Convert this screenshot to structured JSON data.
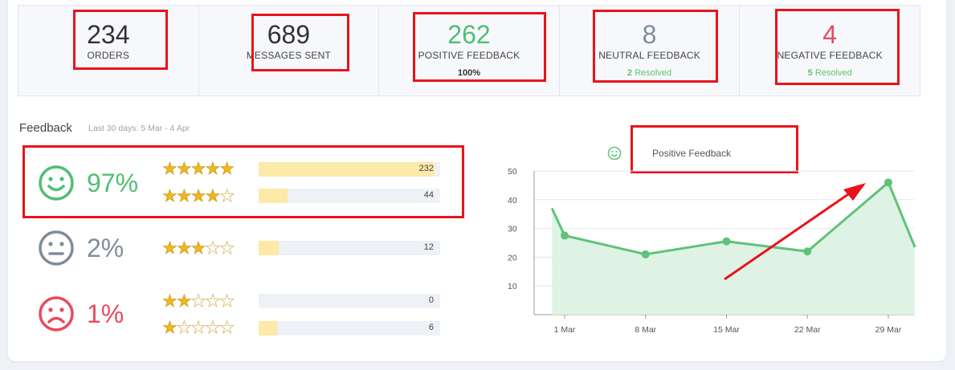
{
  "stats": [
    {
      "value": "234",
      "label": "ORDERS",
      "sub": ""
    },
    {
      "value": "689",
      "label": "MESSAGES SENT",
      "sub": ""
    },
    {
      "value": "262",
      "label": "POSITIVE FEEDBACK",
      "sub": "100%"
    },
    {
      "value": "8",
      "label": "NEUTRAL FEEDBACK",
      "sub_count": "2",
      "sub_label": "Resolved"
    },
    {
      "value": "4",
      "label": "NEGATIVE FEEDBACK",
      "sub_count": "5",
      "sub_label": "Resolved"
    }
  ],
  "colors": {
    "positive": "#4fbf72",
    "neutral": "#7f8c9a",
    "negative": "#e84a5f",
    "highlight": "#e8141b"
  },
  "feedback": {
    "title": "Feedback",
    "period": "Last 30 days: 5 Mar - 4 Apr",
    "groups": [
      {
        "icon": "happy-face-icon",
        "percent": "97%"
      },
      {
        "icon": "neutral-face-icon",
        "percent": "2%"
      },
      {
        "icon": "sad-face-icon",
        "percent": "1%"
      }
    ],
    "ratings": [
      {
        "stars": 5,
        "count": "232",
        "fill": 0.97
      },
      {
        "stars": 4,
        "count": "44",
        "fill": 0.16
      },
      {
        "stars": 3,
        "count": "12",
        "fill": 0.11
      },
      {
        "stars": 2,
        "count": "0",
        "fill": 0
      },
      {
        "stars": 1,
        "count": "6",
        "fill": 0.1
      }
    ]
  },
  "chart_data": {
    "type": "area",
    "legend": "Positive Feedback",
    "x": [
      "28 Feb",
      "1 Mar",
      "8 Mar",
      "15 Mar",
      "22 Mar",
      "29 Mar",
      "1 Apr"
    ],
    "x_ticks": [
      "1 Mar",
      "8 Mar",
      "15 Mar",
      "22 Mar",
      "29 Mar"
    ],
    "values": [
      37,
      27.5,
      21,
      25.5,
      22,
      46,
      23.5
    ],
    "y_ticks": [
      "50",
      "40",
      "30",
      "20",
      "10"
    ],
    "ylim": [
      0,
      50
    ],
    "grid": true,
    "color": "#5fc27a"
  }
}
